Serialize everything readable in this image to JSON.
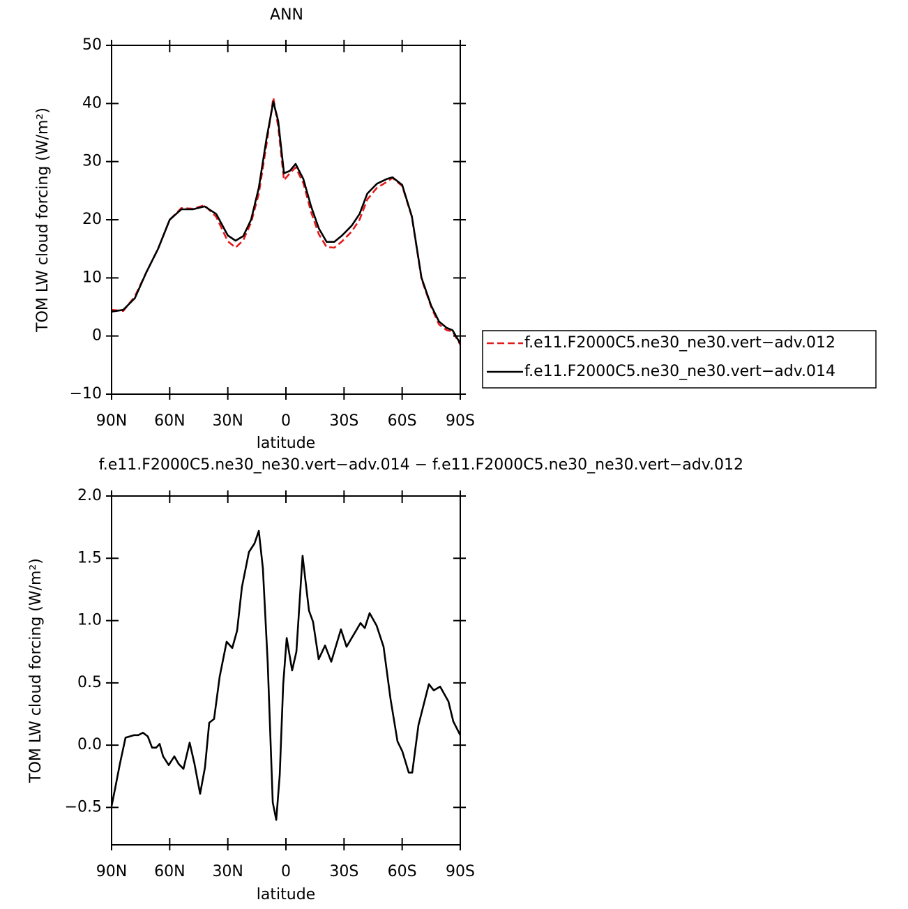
{
  "chart_data": [
    {
      "type": "line",
      "title": "ANN",
      "xlabel": "latitude",
      "ylabel": "TOM LW cloud forcing (W/m²)",
      "x": [
        90,
        84,
        78,
        72,
        66,
        60,
        54,
        48,
        42,
        36,
        30,
        26,
        22,
        18,
        14,
        10,
        6.5,
        4,
        1,
        -2,
        -5,
        -9,
        -13,
        -17,
        -21,
        -25,
        -29,
        -34,
        -38,
        -42,
        -47,
        -52,
        -55,
        -60,
        -65,
        -70,
        -75,
        -79,
        -83,
        -86,
        -90
      ],
      "xlim": [
        90,
        -90
      ],
      "xticks": [
        {
          "value": 90,
          "label": "90N"
        },
        {
          "value": 60,
          "label": "60N"
        },
        {
          "value": 30,
          "label": "30N"
        },
        0,
        {
          "value": -30,
          "label": "30S"
        },
        {
          "value": -60,
          "label": "60S"
        },
        {
          "value": -90,
          "label": "90S"
        }
      ],
      "ylim": [
        -10,
        50
      ],
      "yticks": [
        {
          "value": -10,
          "label": "−10"
        },
        0,
        10,
        20,
        30,
        40,
        50
      ],
      "legend": "right",
      "series": [
        {
          "name": "f.e11.F2000C5.ne30_ne30.vert−adv.012",
          "color": "#e31a1c",
          "dash": true,
          "values": [
            4.5,
            4.3,
            6.8,
            11,
            15,
            20,
            22,
            21.9,
            22.5,
            20.5,
            16.3,
            15.2,
            16.5,
            19.5,
            24.5,
            33,
            41,
            36,
            26.8,
            28,
            29,
            26.3,
            21.3,
            17.5,
            15.3,
            15.2,
            16.3,
            18,
            20,
            23.5,
            25.5,
            26.5,
            27.2,
            25.8,
            20.5,
            9.8,
            5,
            2,
            1,
            0.8,
            -1.5
          ]
        },
        {
          "name": "f.e11.F2000C5.ne30_ne30.vert−adv.014",
          "color": "#000000",
          "dash": false,
          "values": [
            4.2,
            4.5,
            6.5,
            11,
            15,
            20,
            21.8,
            21.8,
            22.3,
            21,
            17.3,
            16.4,
            17.2,
            20,
            25.5,
            34,
            40.3,
            37,
            28,
            28.4,
            29.6,
            27,
            22.3,
            18.5,
            16.2,
            16.2,
            17.3,
            19,
            21,
            24.5,
            26.2,
            27,
            27.3,
            26,
            20.6,
            10,
            5.2,
            2.5,
            1.4,
            1,
            -1.3
          ]
        }
      ]
    },
    {
      "type": "line",
      "title": "f.e11.F2000C5.ne30_ne30.vert−adv.014 − f.e11.F2000C5.ne30_ne30.vert−adv.012",
      "xlabel": "latitude",
      "ylabel": "TOM LW cloud forcing (W/m²)",
      "x": [
        90,
        88.2,
        85.7,
        82.8,
        80.6,
        78.5,
        76.3,
        73.8,
        71.3,
        69.1,
        67,
        65.2,
        63.4,
        60.5,
        57.6,
        55.4,
        52.9,
        49.7,
        47.2,
        44.3,
        41.8,
        39.6,
        37.1,
        34.2,
        30.6,
        27.7,
        25.2,
        22.7,
        19.1,
        16.2,
        14,
        11.9,
        9.4,
        6.8,
        5,
        3.2,
        1.4,
        -0.4,
        -3.2,
        -5.4,
        -8.6,
        -11.9,
        -14,
        -16.9,
        -20.2,
        -23.4,
        -28.4,
        -31.3,
        -38.5,
        -40.7,
        -43.2,
        -46.8,
        -50.4,
        -54,
        -57.6,
        -60.1,
        -63.4,
        -65.2,
        -68.4,
        -73.8,
        -76.3,
        -79.6,
        -83.9,
        -86.4,
        -90
      ],
      "xlim": [
        90,
        -90
      ],
      "xticks": [
        {
          "value": 90,
          "label": "90N"
        },
        {
          "value": 60,
          "label": "60N"
        },
        {
          "value": 30,
          "label": "30N"
        },
        0,
        {
          "value": -30,
          "label": "30S"
        },
        {
          "value": -60,
          "label": "60S"
        },
        {
          "value": -90,
          "label": "90S"
        }
      ],
      "ylim": [
        -0.8,
        2.0
      ],
      "yticks": [
        {
          "value": -0.5,
          "label": "−0.5"
        },
        {
          "value": 0,
          "label": "0.0"
        },
        0.5,
        {
          "value": 1,
          "label": "1.0"
        },
        1.5,
        {
          "value": 2,
          "label": "2.0"
        }
      ],
      "series": [
        {
          "color": "#000000",
          "dash": false,
          "values": [
            -0.49,
            -0.35,
            -0.15,
            0.06,
            0.07,
            0.08,
            0.08,
            0.1,
            0.07,
            -0.02,
            -0.02,
            0.01,
            -0.09,
            -0.16,
            -0.09,
            -0.15,
            -0.19,
            0.02,
            -0.15,
            -0.39,
            -0.18,
            0.18,
            0.21,
            0.55,
            0.83,
            0.78,
            0.92,
            1.27,
            1.55,
            1.62,
            1.72,
            1.42,
            0.66,
            -0.46,
            -0.6,
            -0.24,
            0.49,
            0.86,
            0.6,
            0.75,
            1.52,
            1.08,
            0.99,
            0.69,
            0.8,
            0.67,
            0.93,
            0.79,
            0.98,
            0.94,
            1.06,
            0.96,
            0.79,
            0.37,
            0.03,
            -0.05,
            -0.22,
            -0.22,
            0.16,
            0.49,
            0.44,
            0.47,
            0.35,
            0.19,
            0.08
          ]
        }
      ]
    }
  ]
}
